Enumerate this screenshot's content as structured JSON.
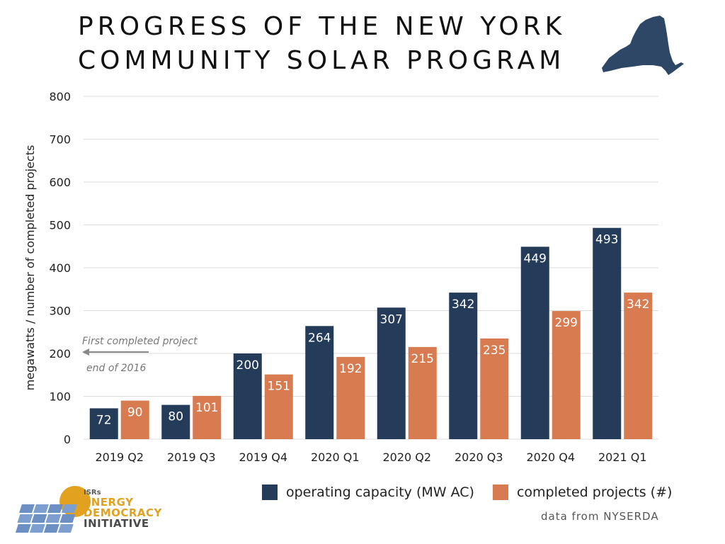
{
  "title_lines": [
    "PROGRESS OF THE NEW YORK",
    "COMMUNITY SOLAR PROGRAM"
  ],
  "colors": {
    "capacity": "#243b5a",
    "projects": "#d97b50",
    "grid": "#dcdcdc",
    "map": "#2e4766",
    "annotation": "#777777"
  },
  "chart_data": {
    "type": "bar",
    "categories": [
      "2019 Q2",
      "2019 Q3",
      "2019 Q4",
      "2020 Q1",
      "2020 Q2",
      "2020 Q3",
      "2020 Q4",
      "2021 Q1"
    ],
    "series": [
      {
        "name": "operating capacity (MW AC)",
        "values": [
          72,
          80,
          200,
          264,
          307,
          342,
          449,
          493
        ]
      },
      {
        "name": "completed projects (#)",
        "values": [
          90,
          101,
          151,
          192,
          215,
          235,
          299,
          342
        ]
      }
    ],
    "ylabel": "megawatts / number of completed projects",
    "ylim": [
      0,
      800
    ],
    "yticks": [
      0,
      100,
      200,
      300,
      400,
      500,
      600,
      700,
      800
    ],
    "grid": true,
    "legend": "bottom-right",
    "annotations": [
      "First completed project",
      "end of 2016"
    ]
  },
  "source": "data from NYSERDA",
  "logo": {
    "line0": "ISRs",
    "line1": "ENERGY",
    "line2": "DEMOCRACY",
    "line3": "INITIATIVE"
  }
}
